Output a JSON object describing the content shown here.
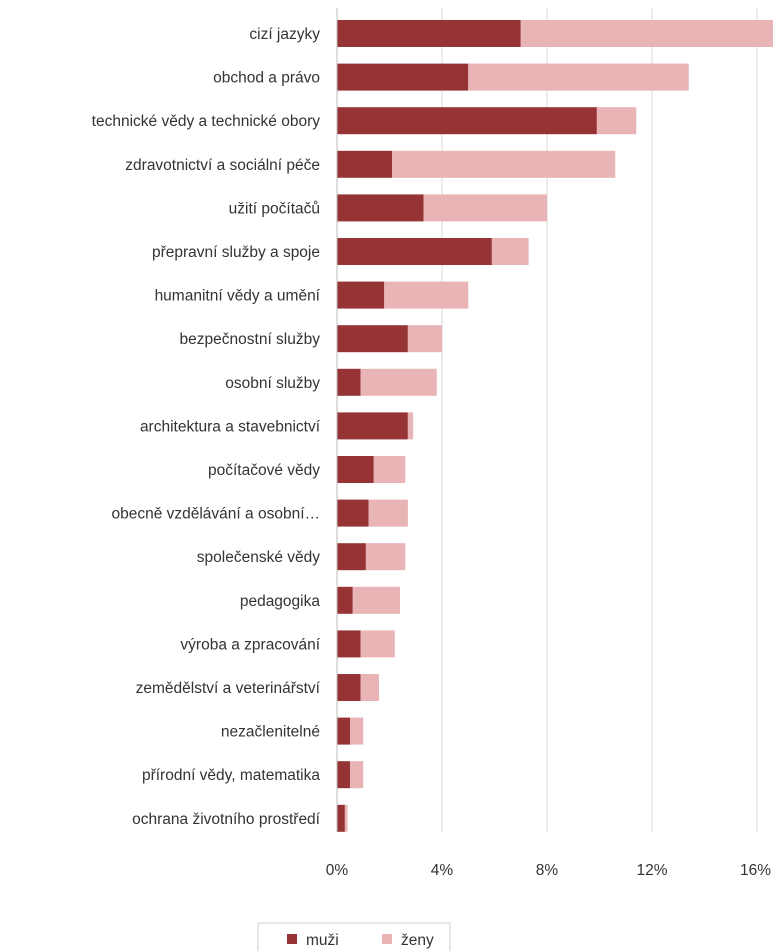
{
  "chart_data": {
    "type": "bar",
    "orientation": "horizontal",
    "stacked": true,
    "categories": [
      "cizí jazyky",
      "obchod a právo",
      "technické vědy a technické obory",
      "zdravotnictví a sociální péče",
      "užití počítačů",
      "přepravní služby a spoje",
      "humanitní vědy a umění",
      "bezpečnostní služby",
      "osobní služby",
      "architektura a stavebnictví",
      "počítačové vědy",
      "obecně vzdělávání a osobní…",
      "společenské vědy",
      "pedagogika",
      "výroba a zpracování",
      "zemědělství a veterinářství",
      "nezačlenitelné",
      "přírodní vědy, matematika",
      "ochrana životního prostředí"
    ],
    "series": [
      {
        "name": "muži",
        "color": "#953335",
        "values": [
          7.0,
          5.0,
          9.9,
          2.1,
          3.3,
          5.9,
          1.8,
          2.7,
          0.9,
          2.7,
          1.4,
          1.2,
          1.1,
          0.6,
          0.9,
          0.9,
          0.5,
          0.5,
          0.3
        ]
      },
      {
        "name": "ženy",
        "color": "#e8b4b6",
        "values": [
          9.8,
          8.4,
          1.5,
          8.5,
          4.7,
          1.4,
          3.2,
          1.3,
          2.9,
          0.2,
          1.2,
          1.5,
          1.5,
          1.8,
          1.3,
          0.7,
          0.5,
          0.5,
          0.1
        ]
      }
    ],
    "xlim": [
      0,
      16.8
    ],
    "xticks": [
      0,
      4,
      8,
      12,
      16
    ],
    "xtick_labels": [
      "0%",
      "4%",
      "8%",
      "12%",
      "16%"
    ],
    "grid": "vertical",
    "legend_position": "bottom-center",
    "title": "",
    "xlabel": "",
    "ylabel": ""
  }
}
